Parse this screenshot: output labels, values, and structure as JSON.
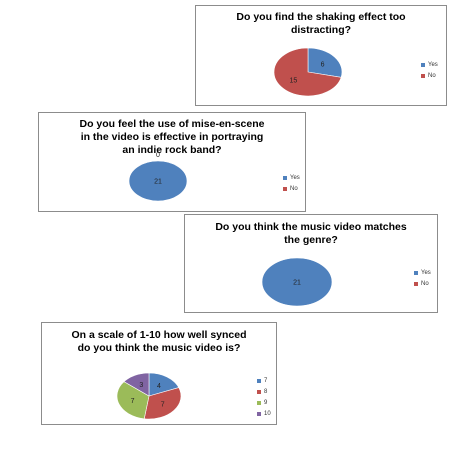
{
  "chart_data": [
    {
      "type": "pie",
      "title": "Do you find the shaking effect too distracting?",
      "categories": [
        "Yes",
        "No"
      ],
      "values": [
        6,
        15
      ],
      "colors": [
        "#4f81bd",
        "#c0504d"
      ],
      "data_labels": [
        "6",
        "15"
      ],
      "legend_position": "right"
    },
    {
      "type": "pie",
      "title": "Do you feel the use of mise-en-scene in the video is effective in portraying an indie rock band?",
      "categories": [
        "Yes",
        "No"
      ],
      "values": [
        21,
        0
      ],
      "colors": [
        "#4f81bd",
        "#c0504d"
      ],
      "data_labels": [
        "21",
        "0"
      ],
      "legend_position": "right"
    },
    {
      "type": "pie",
      "title": "Do you think the music video matches the genre?",
      "categories": [
        "Yes",
        "No"
      ],
      "values": [
        21,
        0
      ],
      "colors": [
        "#4f81bd",
        "#c0504d"
      ],
      "data_labels": [
        "21"
      ],
      "legend_position": "right"
    },
    {
      "type": "pie",
      "title": "On a scale of 1-10 how well synced do you think the music video is?",
      "categories": [
        "7",
        "8",
        "9",
        "10"
      ],
      "values": [
        4,
        7,
        7,
        3
      ],
      "colors": [
        "#4f81bd",
        "#c0504d",
        "#9bbb59",
        "#8064a2"
      ],
      "data_labels": [
        "4",
        "7",
        "7",
        "3"
      ],
      "legend_position": "right"
    }
  ]
}
